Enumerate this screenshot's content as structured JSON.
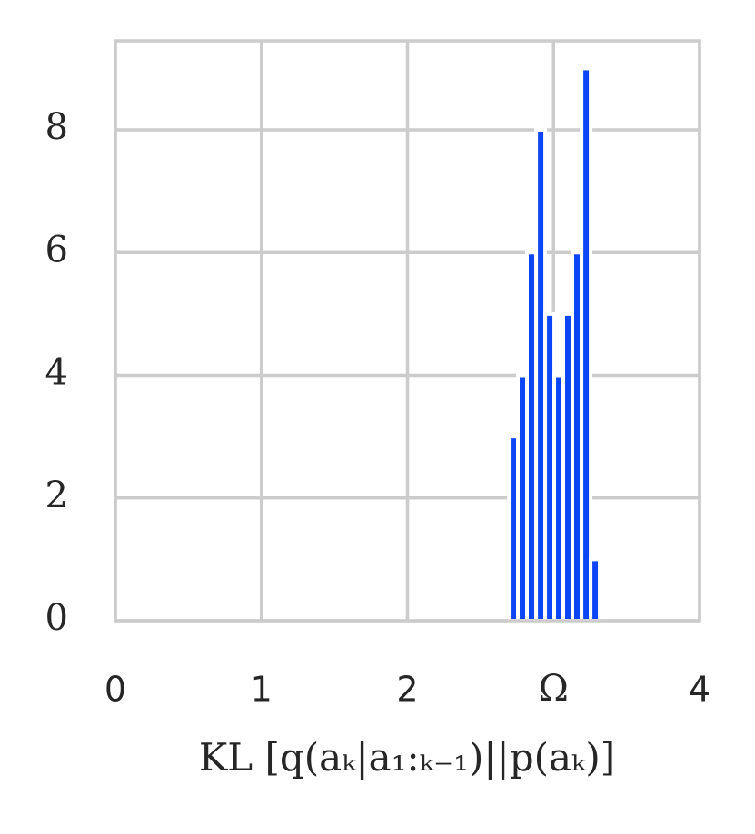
{
  "chart_data": {
    "type": "histogram",
    "x_label": "KL [q(aₖ|a₁:ₖ₋₁)||p(aₖ)]",
    "bins": [
      2.694,
      2.756,
      2.818,
      2.881,
      2.943,
      3.005,
      3.067,
      3.129,
      3.192,
      3.254,
      3.316
    ],
    "values": [
      3,
      4,
      6,
      8,
      5,
      4,
      5,
      6,
      9,
      1
    ],
    "color": "#0b45f5",
    "xlim": [
      0,
      4
    ],
    "xticks": [
      0,
      1,
      2,
      {
        "value": 3,
        "label": "Ω"
      },
      4
    ],
    "ylim": [
      0,
      9.45
    ],
    "yticks": [
      0,
      2,
      4,
      6,
      8
    ],
    "grid": true
  }
}
